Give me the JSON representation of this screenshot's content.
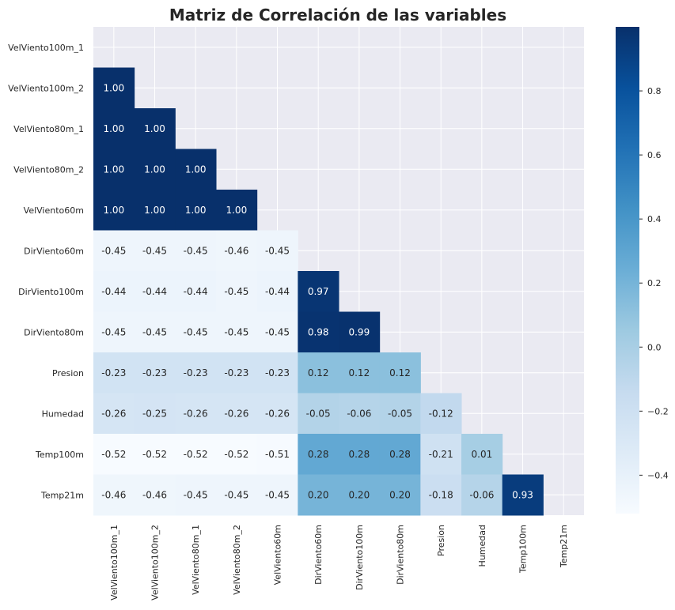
{
  "chart_data": {
    "type": "heatmap",
    "title": "Matriz de Correlación de las variables",
    "xlabel": "",
    "ylabel": "",
    "row_labels": [
      "VelViento100m_1",
      "VelViento100m_2",
      "VelViento80m_1",
      "VelViento80m_2",
      "VelViento60m",
      "DirViento60m",
      "DirViento100m",
      "DirViento80m",
      "Presion",
      "Humedad",
      "Temp100m",
      "Temp21m"
    ],
    "col_labels": [
      "VelViento100m_1",
      "VelViento100m_2",
      "VelViento80m_1",
      "VelViento80m_2",
      "VelViento60m",
      "DirViento60m",
      "DirViento100m",
      "DirViento80m",
      "Presion",
      "Humedad",
      "Temp100m",
      "Temp21m"
    ],
    "mask": "upper triangle incl. diagonal",
    "values": [
      [
        null,
        null,
        null,
        null,
        null,
        null,
        null,
        null,
        null,
        null,
        null,
        null
      ],
      [
        1.0,
        null,
        null,
        null,
        null,
        null,
        null,
        null,
        null,
        null,
        null,
        null
      ],
      [
        1.0,
        1.0,
        null,
        null,
        null,
        null,
        null,
        null,
        null,
        null,
        null,
        null
      ],
      [
        1.0,
        1.0,
        1.0,
        null,
        null,
        null,
        null,
        null,
        null,
        null,
        null,
        null
      ],
      [
        1.0,
        1.0,
        1.0,
        1.0,
        null,
        null,
        null,
        null,
        null,
        null,
        null,
        null
      ],
      [
        -0.45,
        -0.45,
        -0.45,
        -0.46,
        -0.45,
        null,
        null,
        null,
        null,
        null,
        null,
        null
      ],
      [
        -0.44,
        -0.44,
        -0.44,
        -0.45,
        -0.44,
        0.97,
        null,
        null,
        null,
        null,
        null,
        null
      ],
      [
        -0.45,
        -0.45,
        -0.45,
        -0.45,
        -0.45,
        0.98,
        0.99,
        null,
        null,
        null,
        null,
        null
      ],
      [
        -0.23,
        -0.23,
        -0.23,
        -0.23,
        -0.23,
        0.12,
        0.12,
        0.12,
        null,
        null,
        null,
        null
      ],
      [
        -0.26,
        -0.25,
        -0.26,
        -0.26,
        -0.26,
        -0.05,
        -0.06,
        -0.05,
        -0.12,
        null,
        null,
        null
      ],
      [
        -0.52,
        -0.52,
        -0.52,
        -0.52,
        -0.51,
        0.28,
        0.28,
        0.28,
        -0.21,
        0.01,
        null,
        null
      ],
      [
        -0.46,
        -0.46,
        -0.45,
        -0.45,
        -0.45,
        0.2,
        0.2,
        0.2,
        -0.18,
        -0.06,
        0.93,
        null
      ]
    ],
    "colormap": "Blues",
    "color_range": [
      -0.52,
      1.0
    ],
    "colorbar_ticks": [
      0.8,
      0.6,
      0.4,
      0.2,
      0.0,
      -0.2,
      -0.4
    ],
    "colorbar_tick_labels": [
      "0.8",
      "0.6",
      "0.4",
      "0.2",
      "0.0",
      "−0.2",
      "−0.4"
    ],
    "grid": true,
    "legend": "colorbar right"
  }
}
